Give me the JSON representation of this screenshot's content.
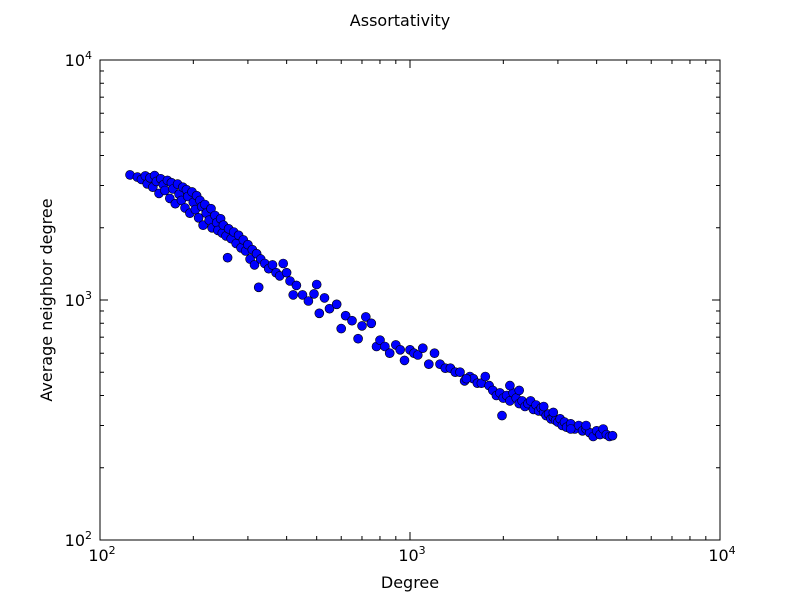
{
  "chart_data": {
    "type": "scatter",
    "title": "Assortativity",
    "xlabel": "Degree",
    "ylabel": "Average neighbor degree",
    "xscale": "log",
    "yscale": "log",
    "xlim": [
      100,
      10000
    ],
    "ylim": [
      100,
      10000
    ],
    "grid": false,
    "x_ticks": [
      {
        "base": "10",
        "exp": "2"
      },
      {
        "base": "10",
        "exp": "3"
      },
      {
        "base": "10",
        "exp": "4"
      }
    ],
    "y_ticks": [
      {
        "base": "10",
        "exp": "2"
      },
      {
        "base": "10",
        "exp": "3"
      },
      {
        "base": "10",
        "exp": "4"
      }
    ],
    "marker_color": "#0000ff",
    "marker_edge": "#000000",
    "series": [
      {
        "points": [
          [
            125,
            3320
          ],
          [
            132,
            3250
          ],
          [
            136,
            3180
          ],
          [
            140,
            3290
          ],
          [
            142,
            3050
          ],
          [
            145,
            3230
          ],
          [
            148,
            2950
          ],
          [
            150,
            3300
          ],
          [
            152,
            3120
          ],
          [
            155,
            2780
          ],
          [
            157,
            3200
          ],
          [
            160,
            3020
          ],
          [
            162,
            2860
          ],
          [
            165,
            3150
          ],
          [
            168,
            2650
          ],
          [
            170,
            3080
          ],
          [
            172,
            2900
          ],
          [
            175,
            2520
          ],
          [
            178,
            3040
          ],
          [
            180,
            2760
          ],
          [
            183,
            2600
          ],
          [
            185,
            2950
          ],
          [
            188,
            2420
          ],
          [
            190,
            2880
          ],
          [
            192,
            2700
          ],
          [
            195,
            2300
          ],
          [
            198,
            2820
          ],
          [
            200,
            2550
          ],
          [
            203,
            2380
          ],
          [
            205,
            2720
          ],
          [
            208,
            2200
          ],
          [
            210,
            2600
          ],
          [
            213,
            2450
          ],
          [
            215,
            2050
          ],
          [
            218,
            2500
          ],
          [
            220,
            2300
          ],
          [
            225,
            2150
          ],
          [
            228,
            2400
          ],
          [
            230,
            2000
          ],
          [
            235,
            2250
          ],
          [
            238,
            2100
          ],
          [
            240,
            1950
          ],
          [
            245,
            2180
          ],
          [
            248,
            1900
          ],
          [
            250,
            2050
          ],
          [
            255,
            1850
          ],
          [
            258,
            1500
          ],
          [
            260,
            1980
          ],
          [
            265,
            1800
          ],
          [
            270,
            1920
          ],
          [
            275,
            1720
          ],
          [
            280,
            1860
          ],
          [
            285,
            1650
          ],
          [
            290,
            1780
          ],
          [
            295,
            1600
          ],
          [
            300,
            1700
          ],
          [
            305,
            1480
          ],
          [
            310,
            1620
          ],
          [
            315,
            1400
          ],
          [
            320,
            1560
          ],
          [
            325,
            1130
          ],
          [
            330,
            1480
          ],
          [
            340,
            1420
          ],
          [
            350,
            1350
          ],
          [
            360,
            1400
          ],
          [
            370,
            1300
          ],
          [
            380,
            1260
          ],
          [
            390,
            1420
          ],
          [
            400,
            1300
          ],
          [
            410,
            1200
          ],
          [
            420,
            1050
          ],
          [
            430,
            1150
          ],
          [
            450,
            1050
          ],
          [
            470,
            990
          ],
          [
            490,
            1060
          ],
          [
            500,
            1160
          ],
          [
            510,
            880
          ],
          [
            530,
            1020
          ],
          [
            550,
            920
          ],
          [
            580,
            960
          ],
          [
            600,
            760
          ],
          [
            620,
            860
          ],
          [
            650,
            820
          ],
          [
            680,
            690
          ],
          [
            700,
            780
          ],
          [
            720,
            850
          ],
          [
            750,
            800
          ],
          [
            780,
            640
          ],
          [
            800,
            680
          ],
          [
            830,
            640
          ],
          [
            860,
            600
          ],
          [
            900,
            650
          ],
          [
            930,
            620
          ],
          [
            960,
            560
          ],
          [
            1000,
            620
          ],
          [
            1030,
            600
          ],
          [
            1060,
            590
          ],
          [
            1100,
            630
          ],
          [
            1150,
            540
          ],
          [
            1200,
            600
          ],
          [
            1250,
            540
          ],
          [
            1300,
            520
          ],
          [
            1350,
            520
          ],
          [
            1400,
            500
          ],
          [
            1450,
            500
          ],
          [
            1500,
            460
          ],
          [
            1560,
            480
          ],
          [
            1600,
            470
          ],
          [
            1650,
            450
          ],
          [
            1700,
            450
          ],
          [
            1750,
            480
          ],
          [
            1800,
            440
          ],
          [
            1850,
            420
          ],
          [
            1900,
            400
          ],
          [
            1950,
            410
          ],
          [
            2000,
            390
          ],
          [
            2050,
            400
          ],
          [
            2100,
            380
          ],
          [
            2150,
            410
          ],
          [
            2200,
            390
          ],
          [
            2250,
            370
          ],
          [
            2300,
            380
          ],
          [
            2350,
            360
          ],
          [
            2400,
            370
          ],
          [
            2450,
            380
          ],
          [
            2500,
            350
          ],
          [
            2550,
            365
          ],
          [
            2600,
            345
          ],
          [
            2650,
            355
          ],
          [
            2700,
            340
          ],
          [
            2750,
            330
          ],
          [
            2800,
            335
          ],
          [
            2850,
            320
          ],
          [
            2900,
            325
          ],
          [
            2950,
            315
          ],
          [
            3000,
            310
          ],
          [
            3050,
            320
          ],
          [
            3100,
            300
          ],
          [
            3150,
            310
          ],
          [
            3200,
            295
          ],
          [
            3300,
            305
          ],
          [
            3400,
            290
          ],
          [
            3500,
            300
          ],
          [
            3600,
            285
          ],
          [
            3700,
            290
          ],
          [
            3800,
            280
          ],
          [
            3900,
            270
          ],
          [
            4000,
            285
          ],
          [
            4100,
            275
          ],
          [
            4200,
            290
          ],
          [
            4300,
            275
          ],
          [
            4400,
            270
          ],
          [
            4500,
            272
          ],
          [
            1980,
            330
          ],
          [
            2100,
            440
          ],
          [
            1520,
            470
          ],
          [
            2700,
            360
          ],
          [
            3300,
            290
          ],
          [
            3700,
            300
          ],
          [
            2250,
            420
          ],
          [
            2900,
            340
          ]
        ]
      }
    ]
  }
}
